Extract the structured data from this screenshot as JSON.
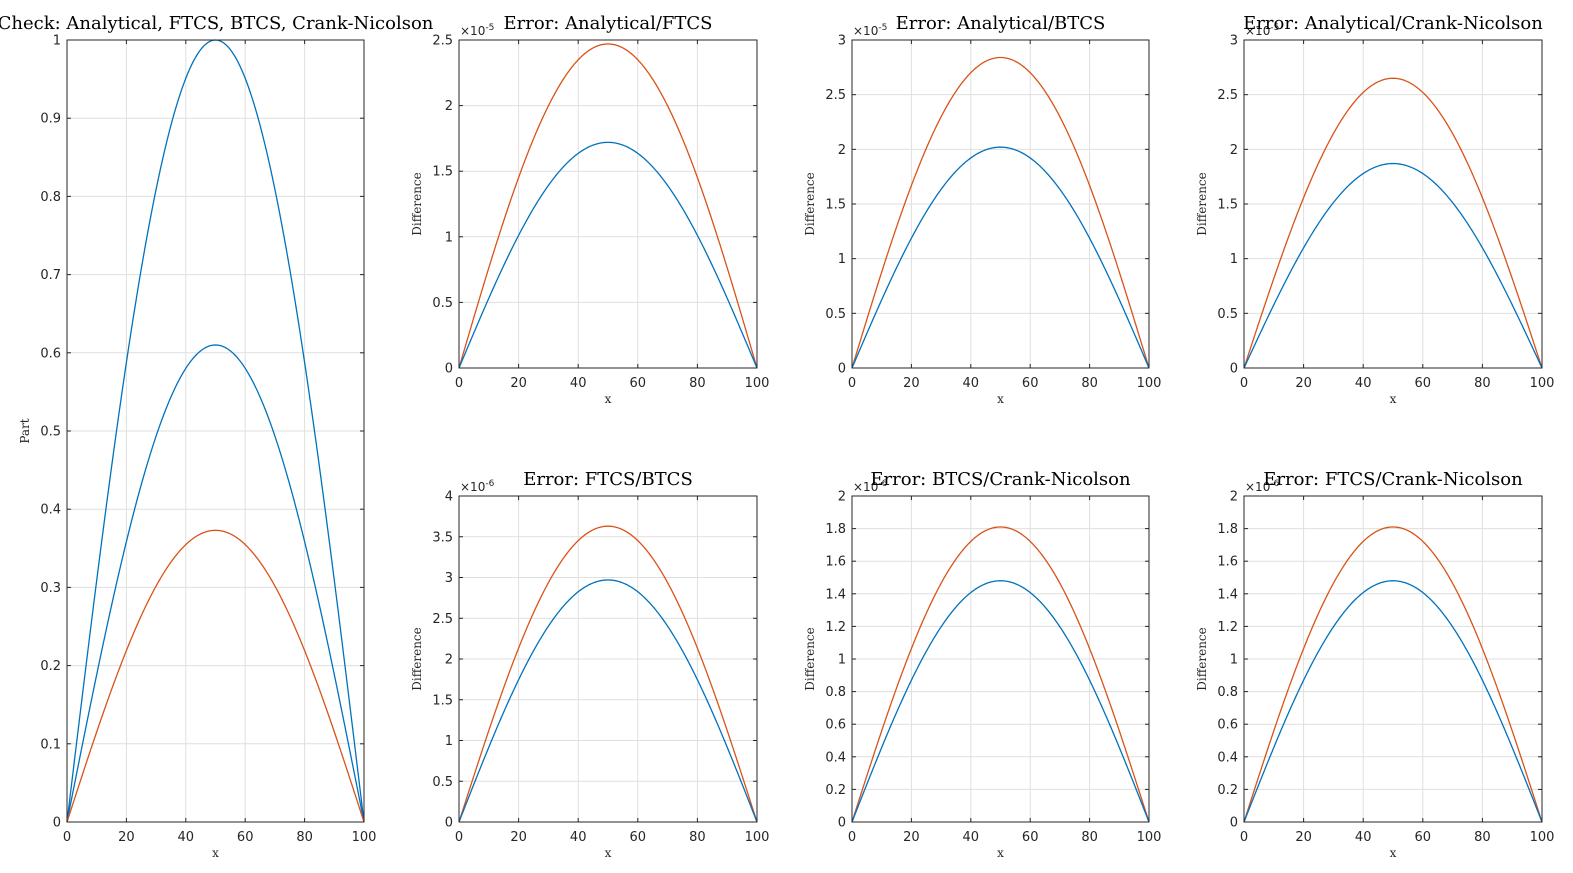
{
  "colors": {
    "blue": "#0072BD",
    "orange": "#D95319"
  },
  "chart_data": [
    {
      "id": "check",
      "type": "line",
      "title": "Check: Analytical, FTCS, BTCS, Crank-Nicolson",
      "xlabel": "x",
      "ylabel": "Part",
      "xlim": [
        0,
        100
      ],
      "ylim": [
        0,
        1
      ],
      "xticks": [
        0,
        20,
        40,
        60,
        80,
        100
      ],
      "yticks": [
        0,
        0.1,
        0.2,
        0.3,
        0.4,
        0.5,
        0.6,
        0.7,
        0.8,
        0.9,
        1
      ],
      "ytick_labels": [
        "0",
        "0.1",
        "0.2",
        "0.3",
        "0.4",
        "0.5",
        "0.6",
        "0.7",
        "0.8",
        "0.9",
        "1"
      ],
      "exponent": "",
      "grid": true,
      "shape": "sine",
      "series": [
        {
          "color": "blue",
          "peak": 1.0
        },
        {
          "color": "blue",
          "peak": 0.61
        },
        {
          "color": "orange",
          "peak": 0.373
        }
      ]
    },
    {
      "id": "an-ftcs",
      "type": "line",
      "title": "Error: Analytical/FTCS",
      "xlabel": "x",
      "ylabel": "Difference",
      "xlim": [
        0,
        100
      ],
      "ylim": [
        0,
        2.5
      ],
      "xticks": [
        0,
        20,
        40,
        60,
        80,
        100
      ],
      "yticks": [
        0,
        0.5,
        1,
        1.5,
        2,
        2.5
      ],
      "ytick_labels": [
        "0",
        "0.5",
        "1",
        "1.5",
        "2",
        "2.5"
      ],
      "exponent": "-5",
      "grid": true,
      "shape": "sine",
      "series": [
        {
          "color": "orange",
          "peak": 2.47
        },
        {
          "color": "blue",
          "peak": 1.72
        }
      ]
    },
    {
      "id": "an-btcs",
      "type": "line",
      "title": "Error: Analytical/BTCS",
      "xlabel": "x",
      "ylabel": "Difference",
      "xlim": [
        0,
        100
      ],
      "ylim": [
        0,
        3
      ],
      "xticks": [
        0,
        20,
        40,
        60,
        80,
        100
      ],
      "yticks": [
        0,
        0.5,
        1,
        1.5,
        2,
        2.5,
        3
      ],
      "ytick_labels": [
        "0",
        "0.5",
        "1",
        "1.5",
        "2",
        "2.5",
        "3"
      ],
      "exponent": "-5",
      "grid": true,
      "shape": "sine",
      "series": [
        {
          "color": "orange",
          "peak": 2.84
        },
        {
          "color": "blue",
          "peak": 2.02
        }
      ]
    },
    {
      "id": "an-cn",
      "type": "line",
      "title": "Error: Analytical/Crank-Nicolson",
      "xlabel": "x",
      "ylabel": "Difference",
      "xlim": [
        0,
        100
      ],
      "ylim": [
        0,
        3
      ],
      "xticks": [
        0,
        20,
        40,
        60,
        80,
        100
      ],
      "yticks": [
        0,
        0.5,
        1,
        1.5,
        2,
        2.5,
        3
      ],
      "ytick_labels": [
        "0",
        "0.5",
        "1",
        "1.5",
        "2",
        "2.5",
        "3"
      ],
      "exponent": "-5",
      "grid": true,
      "shape": "sine",
      "series": [
        {
          "color": "orange",
          "peak": 2.65
        },
        {
          "color": "blue",
          "peak": 1.87
        }
      ]
    },
    {
      "id": "ftcs-btcs",
      "type": "line",
      "title": "Error: FTCS/BTCS",
      "xlabel": "x",
      "ylabel": "Difference",
      "xlim": [
        0,
        100
      ],
      "ylim": [
        0,
        4
      ],
      "xticks": [
        0,
        20,
        40,
        60,
        80,
        100
      ],
      "yticks": [
        0,
        0.5,
        1,
        1.5,
        2,
        2.5,
        3,
        3.5,
        4
      ],
      "ytick_labels": [
        "0",
        "0.5",
        "1",
        "1.5",
        "2",
        "2.5",
        "3",
        "3.5",
        "4"
      ],
      "exponent": "-6",
      "grid": true,
      "shape": "sine",
      "series": [
        {
          "color": "orange",
          "peak": 3.63
        },
        {
          "color": "blue",
          "peak": 2.97
        }
      ]
    },
    {
      "id": "btcs-cn",
      "type": "line",
      "title": "Error: BTCS/Crank-Nicolson",
      "xlabel": "x",
      "ylabel": "Difference",
      "xlim": [
        0,
        100
      ],
      "ylim": [
        0,
        2
      ],
      "xticks": [
        0,
        20,
        40,
        60,
        80,
        100
      ],
      "yticks": [
        0,
        0.2,
        0.4,
        0.6,
        0.8,
        1,
        1.2,
        1.4,
        1.6,
        1.8,
        2
      ],
      "ytick_labels": [
        "0",
        "0.2",
        "0.4",
        "0.6",
        "0.8",
        "1",
        "1.2",
        "1.4",
        "1.6",
        "1.8",
        "2"
      ],
      "exponent": "-6",
      "grid": true,
      "shape": "sine",
      "series": [
        {
          "color": "orange",
          "peak": 1.81
        },
        {
          "color": "blue",
          "peak": 1.48
        }
      ]
    },
    {
      "id": "ftcs-cn",
      "type": "line",
      "title": "Error: FTCS/Crank-Nicolson",
      "xlabel": "x",
      "ylabel": "Difference",
      "xlim": [
        0,
        100
      ],
      "ylim": [
        0,
        2
      ],
      "xticks": [
        0,
        20,
        40,
        60,
        80,
        100
      ],
      "yticks": [
        0,
        0.2,
        0.4,
        0.6,
        0.8,
        1,
        1.2,
        1.4,
        1.6,
        1.8,
        2
      ],
      "ytick_labels": [
        "0",
        "0.2",
        "0.4",
        "0.6",
        "0.8",
        "1",
        "1.2",
        "1.4",
        "1.6",
        "1.8",
        "2"
      ],
      "exponent": "-6",
      "grid": true,
      "shape": "sine",
      "series": [
        {
          "color": "orange",
          "peak": 1.81
        },
        {
          "color": "blue",
          "peak": 1.48
        }
      ]
    }
  ]
}
